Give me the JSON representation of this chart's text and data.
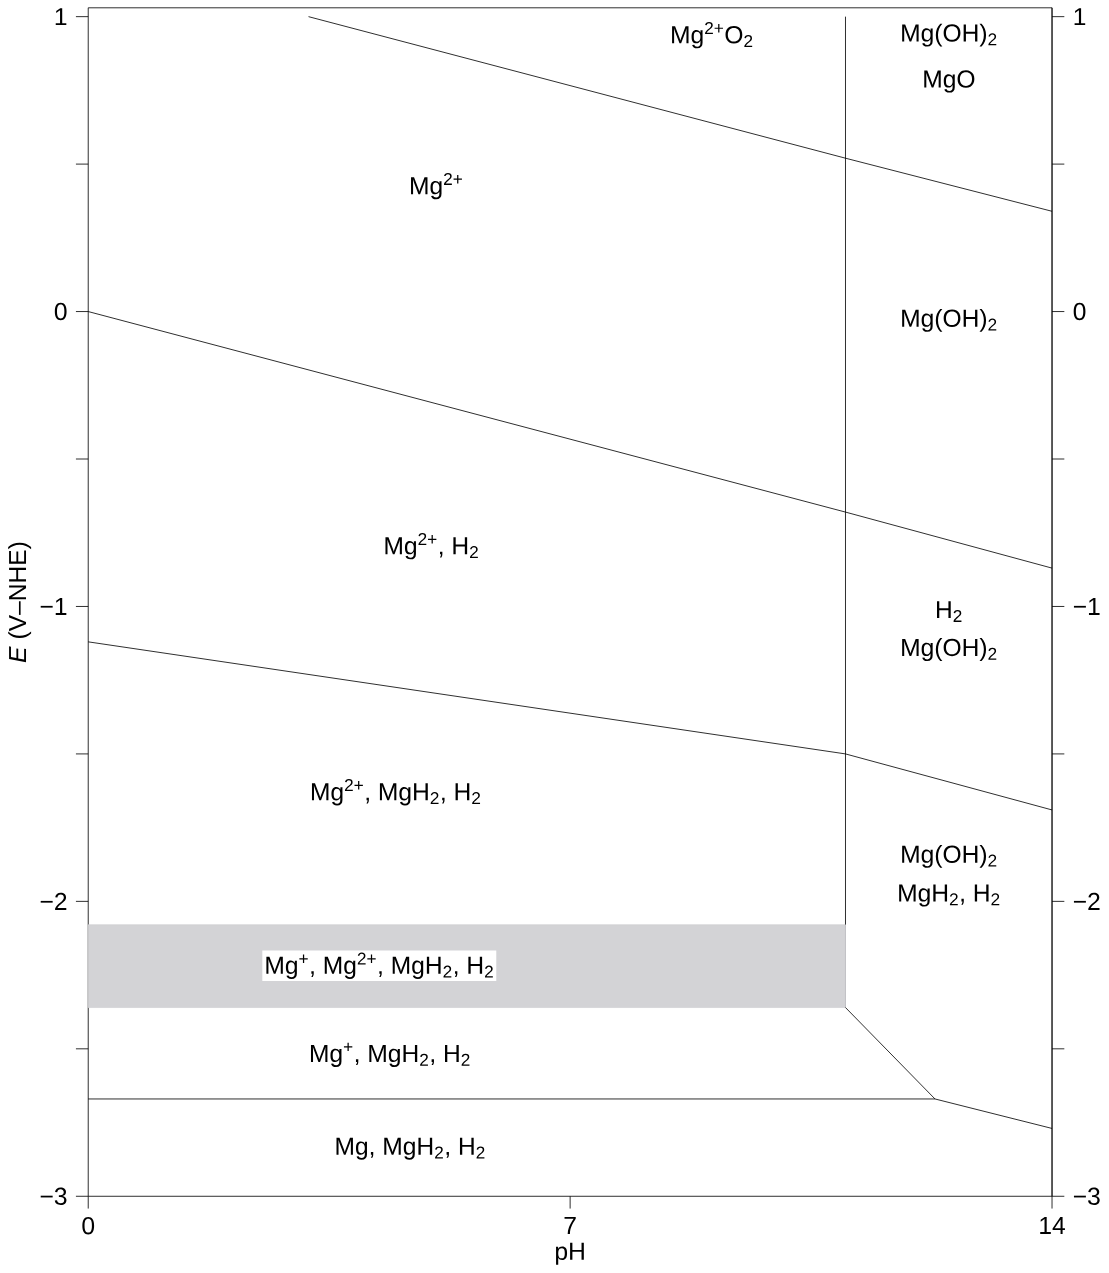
{
  "chart_data": {
    "type": "line",
    "xlabel": "pH",
    "ylabel": "*E* (V–NHE)",
    "series": [
      {
        "color": "#000000",
        "x": [
          3.2,
          11,
          14
        ],
        "values": [
          1,
          0.52,
          0.34
        ]
      },
      {
        "color": "#000000",
        "x": [
          0,
          11,
          14
        ],
        "values": [
          0,
          -0.68,
          -0.87
        ]
      },
      {
        "color": "#000000",
        "x": [
          11,
          11
        ],
        "values": [
          1,
          -2.36
        ]
      },
      {
        "color": "#000000",
        "x": [
          0,
          11,
          14
        ],
        "values": [
          -1.12,
          -1.5,
          -1.69
        ]
      },
      {
        "color": "#d3d3d6",
        "x": [
          0,
          11
        ],
        "values": [
          -2.08,
          -2.08
        ],
        "lower": [
          -2.36,
          -2.36
        ],
        "upper": [
          -2.08,
          -2.08
        ]
      },
      {
        "color": "#000000",
        "x": [
          0,
          12.3,
          14
        ],
        "values": [
          -2.67,
          -2.67,
          -2.77
        ]
      },
      {
        "color": "#000000",
        "x": [
          11,
          12.3
        ],
        "values": [
          -2.36,
          -2.67
        ]
      }
    ],
    "xlim": [
      0,
      14
    ],
    "xticks": [
      0,
      7,
      14
    ],
    "ylim": [
      -3,
      1.03
    ],
    "yticks": [
      {
        "value": -3,
        "label": "−3"
      },
      {
        "value": -2.5,
        "label": null
      },
      {
        "value": -2,
        "label": "−2"
      },
      {
        "value": -1.5,
        "label": null
      },
      {
        "value": -1,
        "label": "−1"
      },
      {
        "value": -0.5,
        "label": null
      },
      0,
      {
        "value": 0.5,
        "label": null
      },
      1
    ],
    "y2lim": [
      -3,
      1.03
    ],
    "y2ticks": [
      {
        "value": -3,
        "label": "−3"
      },
      {
        "value": -2.5,
        "label": null
      },
      {
        "value": -2,
        "label": "−2"
      },
      {
        "value": -1.5,
        "label": null
      },
      {
        "value": -1,
        "label": "−1"
      },
      {
        "value": -0.5,
        "label": null
      },
      0,
      {
        "value": 0.5,
        "label": null
      },
      1
    ],
    "grid": false,
    "marker": "none",
    "line_style": "solid",
    "annotations": [
      "Mg$^{2+}$O$_{2}$",
      "Mg(OH)$_{2}$",
      "MgO",
      "Mg$^{2+}$",
      "Mg(OH)$_{2}$",
      "Mg$^{2+}$, H$_{2}$",
      "H$_{2}$",
      "Mg(OH)$_{2}$",
      "Mg$^{2+}$, MgH$_{2}$, H$_{2}$",
      "Mg(OH)$_{2}$",
      "MgH$_{2}$, H$_{2}$",
      "Mg$^{+}$, Mg$^{2+}$, MgH$_{2}$, H$_{2}$",
      "Mg$^{+}$, MgH$_{2}$, H$_{2}$",
      "Mg, MgH$_{2}$, H$_{2}$"
    ]
  }
}
